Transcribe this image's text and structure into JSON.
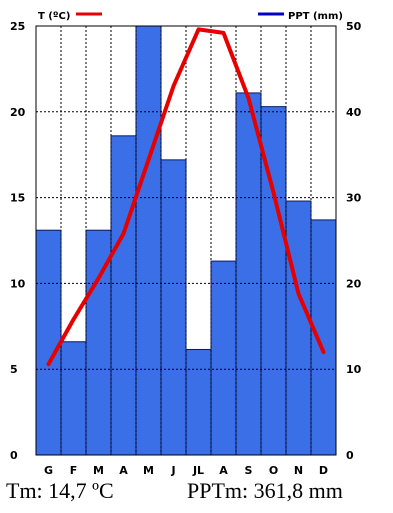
{
  "chart_data": {
    "type": "bar+line",
    "categories": [
      "G",
      "F",
      "M",
      "A",
      "M",
      "J",
      "JL",
      "A",
      "S",
      "O",
      "N",
      "D"
    ],
    "series": [
      {
        "name": "PPT (mm)",
        "kind": "bar",
        "axis": "right",
        "color": "#3a6fe8",
        "values": [
          26.2,
          13.2,
          26.2,
          37.2,
          50,
          34.4,
          12.3,
          22.6,
          42.2,
          40.6,
          29.6,
          27.4
        ]
      },
      {
        "name": "T (ºC)",
        "kind": "line",
        "axis": "left",
        "color": "#e60000",
        "values": [
          5.3,
          7.9,
          10.3,
          12.9,
          17.2,
          21.5,
          24.8,
          24.6,
          20.8,
          15.3,
          9.4,
          6.0
        ]
      }
    ],
    "yleft": {
      "ylim": [
        0,
        25
      ],
      "ticks": [
        "0",
        "5",
        "10",
        "15",
        "20",
        "25"
      ]
    },
    "yright": {
      "ylim": [
        0,
        50
      ],
      "ticks": [
        "0",
        "10",
        "20",
        "30",
        "40",
        "50"
      ]
    },
    "grid": "dashed",
    "legend_position": "top"
  },
  "caption": {
    "tm": "Tm: 14,7 ºC",
    "pptm": "PPTm: 361,8 mm"
  }
}
